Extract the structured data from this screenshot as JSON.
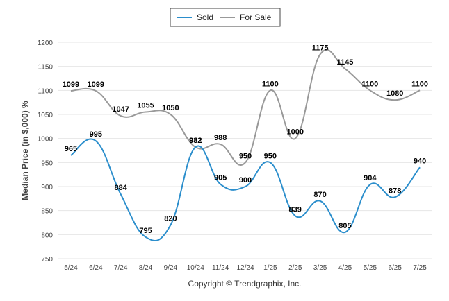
{
  "chart_data": {
    "type": "line",
    "categories": [
      "5/24",
      "6/24",
      "7/24",
      "8/24",
      "9/24",
      "10/24",
      "11/24",
      "12/24",
      "1/25",
      "2/25",
      "3/25",
      "4/25",
      "5/25",
      "6/25",
      "7/25"
    ],
    "series": [
      {
        "name": "Sold",
        "color": "#2b8ecc",
        "values": [
          965,
          995,
          884,
          795,
          820,
          982,
          905,
          900,
          950,
          839,
          870,
          805,
          904,
          878,
          940
        ]
      },
      {
        "name": "For Sale",
        "color": "#999999",
        "values": [
          1099,
          1099,
          1047,
          1055,
          1050,
          982,
          988,
          950,
          1100,
          1000,
          1175,
          1145,
          1100,
          1080,
          1100
        ]
      }
    ],
    "ylabel": "Median Price (in $,000) %",
    "ylim": [
      750,
      1200
    ],
    "yticks": [
      750,
      800,
      850,
      900,
      950,
      1000,
      1050,
      1100,
      1150,
      1200
    ],
    "grid": true,
    "legend_position": "top-center"
  },
  "footer": {
    "credit": "Copyright © Trendgraphix, Inc."
  }
}
